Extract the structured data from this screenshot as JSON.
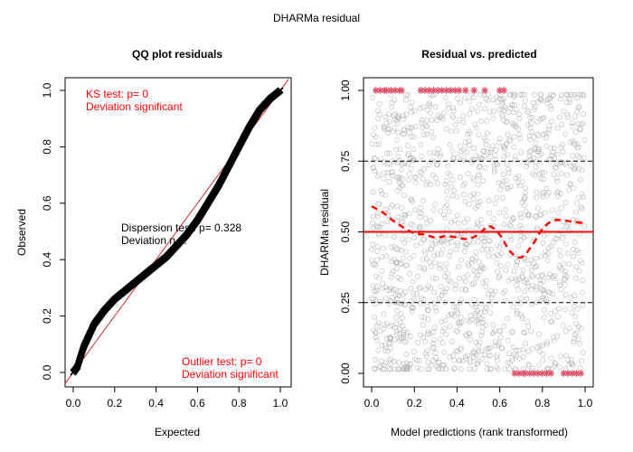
{
  "title": "DHARMa residual",
  "colors": {
    "red": "#ff0000",
    "dark_red": "#cc0000",
    "points": "#000000",
    "outlier": "#df536b",
    "grey": "#9a9a9a"
  },
  "chart_data": [
    {
      "type": "scatter",
      "title": "QQ plot residuals",
      "xlabel": "Expected",
      "ylabel": "Observed",
      "xlim": [
        0,
        1
      ],
      "ylim": [
        0,
        1
      ],
      "xticks": [
        "0.0",
        "0.2",
        "0.4",
        "0.6",
        "0.8",
        "1.0"
      ],
      "yticks": [
        "0.0",
        "0.2",
        "0.4",
        "0.6",
        "0.8",
        "1.0"
      ],
      "reference_line": {
        "x": [
          0,
          1
        ],
        "y": [
          0,
          1
        ]
      },
      "qq_curve": {
        "x": [
          0.0,
          0.02,
          0.05,
          0.1,
          0.15,
          0.2,
          0.25,
          0.3,
          0.35,
          0.4,
          0.45,
          0.5,
          0.55,
          0.6,
          0.65,
          0.7,
          0.75,
          0.8,
          0.85,
          0.9,
          0.95,
          1.0
        ],
        "y": [
          0.0,
          0.02,
          0.09,
          0.17,
          0.22,
          0.26,
          0.29,
          0.32,
          0.35,
          0.38,
          0.41,
          0.45,
          0.49,
          0.54,
          0.6,
          0.66,
          0.73,
          0.8,
          0.87,
          0.93,
          0.97,
          1.0
        ]
      },
      "annotations": {
        "ks_line1": "KS test: p= 0",
        "ks_line2": "Deviation  significant",
        "disp_line1": "Dispersion test: p= 0.328",
        "disp_line2": "Deviation n.s.",
        "outlier_line1": "Outlier test: p= 0",
        "outlier_line2": "Deviation  significant"
      }
    },
    {
      "type": "scatter",
      "title": "Residual vs. predicted",
      "xlabel": "Model predictions (rank transformed)",
      "ylabel": "DHARMa residual",
      "xlim": [
        0,
        1
      ],
      "ylim": [
        0,
        1
      ],
      "xticks": [
        "0.0",
        "0.2",
        "0.4",
        "0.6",
        "0.8",
        "1.0"
      ],
      "yticks": [
        "0.00",
        "0.25",
        "0.50",
        "0.75",
        "1.00"
      ],
      "hlines_dashed": [
        0.25,
        0.75
      ],
      "hline_solid": 0.5,
      "quantile_smooth": {
        "x": [
          0.0,
          0.05,
          0.1,
          0.15,
          0.2,
          0.25,
          0.3,
          0.35,
          0.4,
          0.45,
          0.5,
          0.55,
          0.6,
          0.65,
          0.7,
          0.75,
          0.8,
          0.85,
          0.9,
          0.95,
          1.0
        ],
        "y": [
          0.59,
          0.57,
          0.54,
          0.515,
          0.495,
          0.49,
          0.48,
          0.485,
          0.48,
          0.475,
          0.49,
          0.52,
          0.49,
          0.43,
          0.41,
          0.45,
          0.51,
          0.54,
          0.54,
          0.535,
          0.53
        ]
      },
      "outliers_top_x": [
        0.02,
        0.04,
        0.06,
        0.07,
        0.09,
        0.11,
        0.13,
        0.14,
        0.23,
        0.25,
        0.27,
        0.29,
        0.31,
        0.33,
        0.35,
        0.37,
        0.39,
        0.41,
        0.44,
        0.48,
        0.53,
        0.6,
        0.62
      ],
      "outliers_bottom_x": [
        0.67,
        0.69,
        0.71,
        0.72,
        0.74,
        0.76,
        0.78,
        0.8,
        0.82,
        0.84,
        0.9,
        0.92,
        0.94,
        0.96,
        0.98
      ]
    }
  ]
}
